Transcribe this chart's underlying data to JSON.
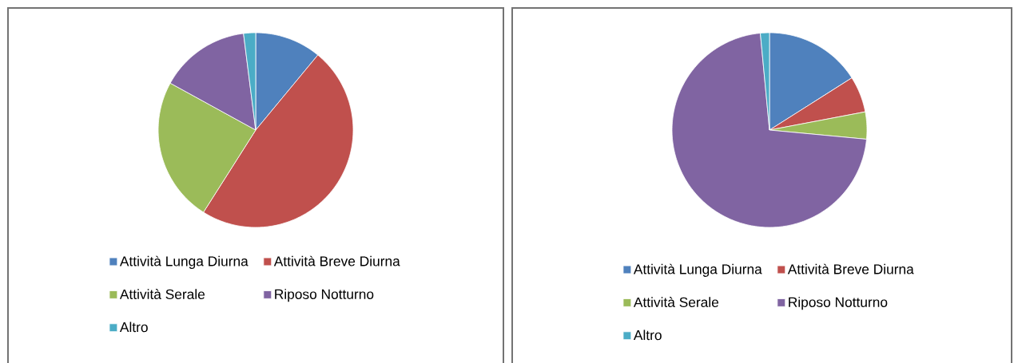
{
  "chart_data": [
    {
      "type": "pie",
      "categories": [
        "Attività Lunga Diurna",
        "Attività Breve Diurna",
        "Attività Serale",
        "Riposo Notturno",
        "Altro"
      ],
      "values": [
        11,
        48,
        24,
        15,
        2
      ],
      "colors": [
        "#4f81bd",
        "#c0504d",
        "#9bbb59",
        "#8064a2",
        "#4bacc6"
      ],
      "legend": "bottom"
    },
    {
      "type": "pie",
      "categories": [
        "Attività Lunga Diurna",
        "Attività Breve Diurna",
        "Attività Serale",
        "Riposo Notturno",
        "Altro"
      ],
      "values": [
        16,
        6,
        4.5,
        72,
        1.5
      ],
      "colors": [
        "#4f81bd",
        "#c0504d",
        "#9bbb59",
        "#8064a2",
        "#4bacc6"
      ],
      "legend": "bottom"
    }
  ]
}
